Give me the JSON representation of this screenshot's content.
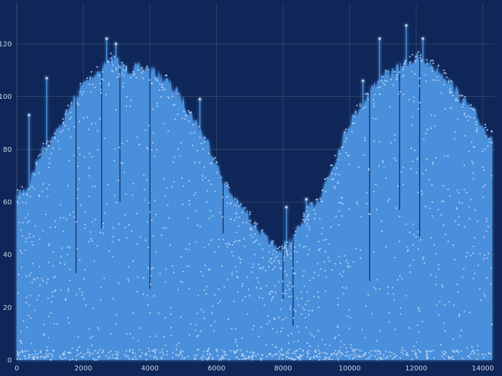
{
  "colors": {
    "background": "#0f2658",
    "fill": "#4a8fdb",
    "points": "#b9d4f2",
    "glow": "#5aa0ff"
  },
  "chart_data": {
    "type": "area",
    "title": "",
    "xlabel": "",
    "ylabel": "",
    "xlim": [
      0,
      14350
    ],
    "ylim": [
      0,
      135
    ],
    "grid": true,
    "legend": "none",
    "x_ticks": [
      "0",
      "2000",
      "4000",
      "6000",
      "8000",
      "10000",
      "12000",
      "14000"
    ],
    "y_ticks": [
      "0",
      "20",
      "40",
      "60",
      "80",
      "100",
      "120"
    ],
    "series": [
      {
        "description_of_values": "approximate upper envelope of dense scatter/area series",
        "x": [
          0,
          330,
          750,
          1170,
          1590,
          2000,
          2430,
          2850,
          3270,
          3690,
          4100,
          4520,
          4940,
          5360,
          5780,
          6200,
          6620,
          7040,
          7460,
          7870,
          8290,
          8710,
          9130,
          9550,
          9970,
          10390,
          10800,
          11220,
          11640,
          12060,
          12480,
          12900,
          13320,
          13740,
          14160,
          14280
        ],
        "y": [
          65,
          68,
          82,
          88,
          98,
          107,
          112,
          117,
          113,
          113,
          112,
          108,
          102,
          93,
          84,
          70,
          62,
          56,
          48,
          44,
          48,
          58,
          65,
          78,
          92,
          100,
          108,
          111,
          115,
          117,
          114,
          110,
          102,
          96,
          88,
          88
        ]
      }
    ],
    "spikes_up": [
      {
        "x": 370,
        "y": 93
      },
      {
        "x": 900,
        "y": 107
      },
      {
        "x": 2700,
        "y": 122
      },
      {
        "x": 2980,
        "y": 120
      },
      {
        "x": 5500,
        "y": 99
      },
      {
        "x": 8100,
        "y": 58
      },
      {
        "x": 8700,
        "y": 61
      },
      {
        "x": 10400,
        "y": 106
      },
      {
        "x": 10900,
        "y": 122
      },
      {
        "x": 11700,
        "y": 127
      },
      {
        "x": 12200,
        "y": 122
      }
    ],
    "spikes_down": [
      {
        "x": 1780,
        "y": 33
      },
      {
        "x": 2550,
        "y": 50
      },
      {
        "x": 4000,
        "y": 27
      },
      {
        "x": 3100,
        "y": 60
      },
      {
        "x": 8000,
        "y": 23
      },
      {
        "x": 8300,
        "y": 13
      },
      {
        "x": 10600,
        "y": 30
      },
      {
        "x": 11500,
        "y": 57
      },
      {
        "x": 12100,
        "y": 47
      },
      {
        "x": 6200,
        "y": 48
      }
    ]
  }
}
